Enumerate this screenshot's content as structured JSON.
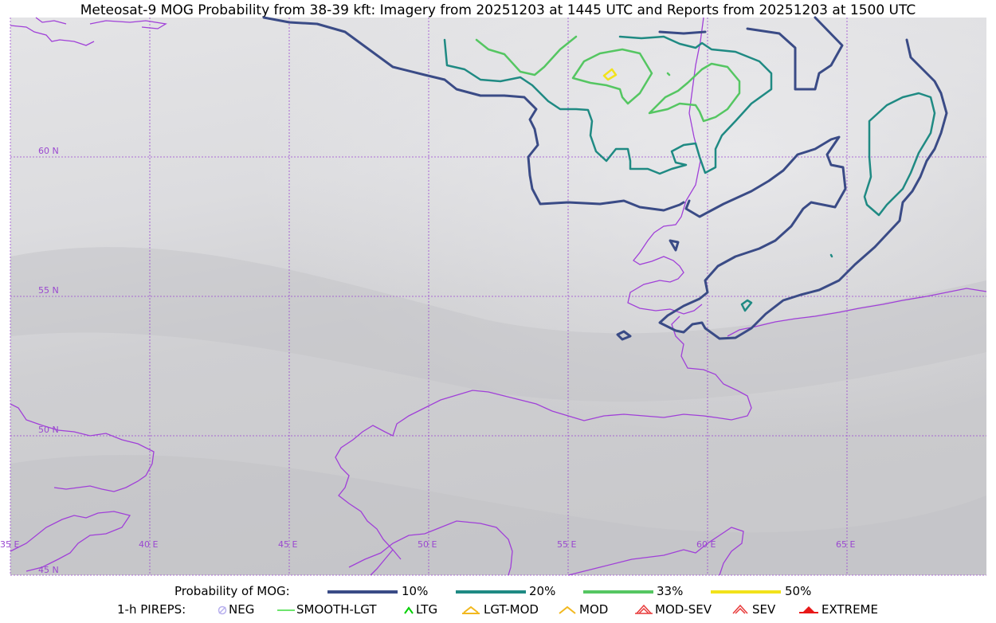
{
  "title": "Meteosat-9 MOG Probability from 38-39 kft: Imagery from 20251203 at 1445 UTC and Reports from 20251203 at 1500 UTC",
  "colors": {
    "p10": "#3a4b86",
    "p20": "#1f8a83",
    "p33": "#55c662",
    "p50": "#f2e21b",
    "boundary": "#a040d8",
    "grid": "#9a48d0",
    "pirep_neg": "#b8b0ee",
    "pirep_smooth": "#3ddc3d",
    "pirep_ltg": "#00d000",
    "pirep_lgtmod": "#f2b81e",
    "pirep_mod": "#f2b81e",
    "pirep_modsev": "#e83a3a",
    "pirep_sev": "#e83a3a",
    "pirep_extreme": "#e81818"
  },
  "map": {
    "lat_labels": [
      "60 N",
      "55 N",
      "50 N",
      "45 N"
    ],
    "lon_labels": [
      "35 E",
      "40 E",
      "45 E",
      "50 E",
      "55 E",
      "60 E",
      "65 E"
    ]
  },
  "legend": {
    "prob_label": "Probability of MOG:",
    "prob_items": [
      "10%",
      "20%",
      "33%",
      "50%"
    ],
    "pirep_label": "1-h PIREPS:",
    "pirep_items": [
      {
        "label": "NEG",
        "icon": "neg-icon"
      },
      {
        "label": "SMOOTH-LGT",
        "icon": "smooth-line-icon"
      },
      {
        "label": "LTG",
        "icon": "ltg-caret-icon"
      },
      {
        "label": "LGT-MOD",
        "icon": "lgt-mod-icon"
      },
      {
        "label": "MOD",
        "icon": "mod-caret-icon"
      },
      {
        "label": "MOD-SEV",
        "icon": "mod-sev-icon"
      },
      {
        "label": "SEV",
        "icon": "sev-icon"
      },
      {
        "label": "EXTREME",
        "icon": "extreme-icon"
      }
    ]
  }
}
